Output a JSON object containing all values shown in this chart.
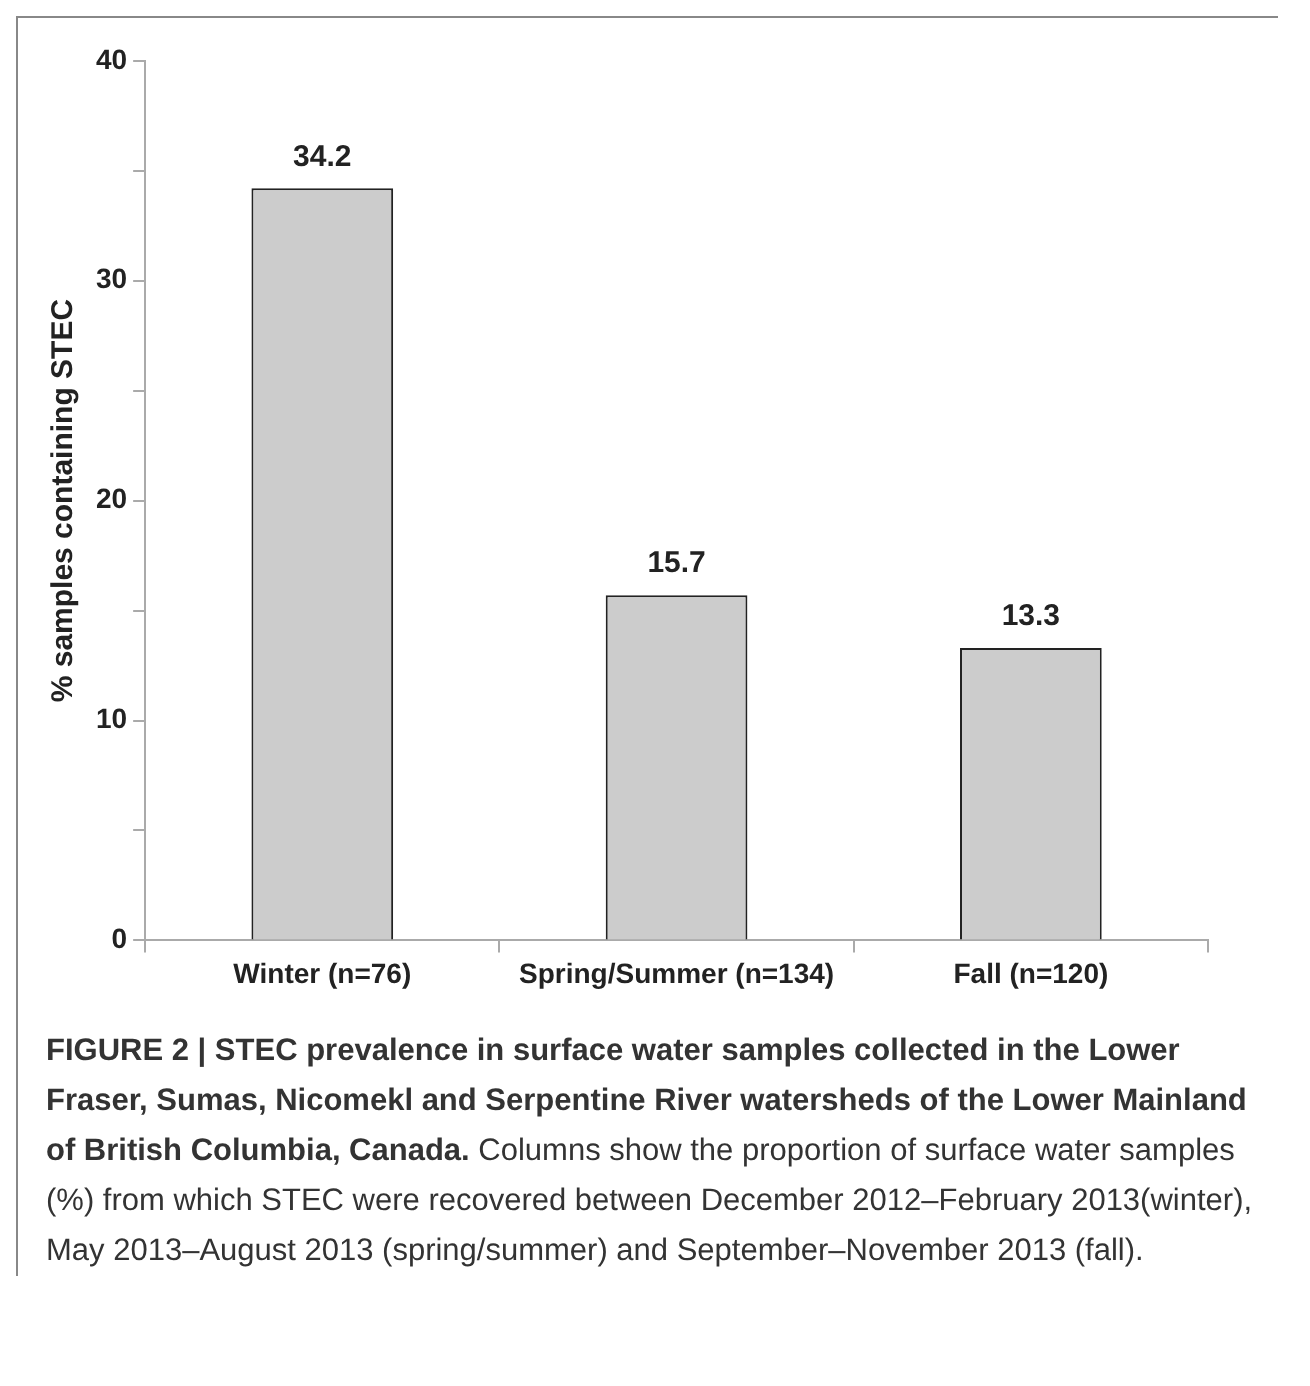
{
  "chart_data": {
    "type": "bar",
    "title": "FIGURE 2 | STEC prevalence in surface water samples collected in the Lower Fraser, Sumas, Nicomekl and Serpentine River watersheds of the Lower Mainland of British Columbia, Canada.",
    "annotations": [
      "Columns show the proportion of surface water samples (%) from which STEC were recovered between December 2012–February 2013(winter), May 2013–August 2013 (spring/summer) and September–November 2013 (fall)."
    ],
    "ylabel": "% samples containing STEC",
    "categories": [
      "Winter (n=76)",
      "Spring/Summer (n=134)",
      "Fall (n=120)"
    ],
    "values": [
      34.2,
      15.7,
      13.3
    ],
    "color": "#cccccc",
    "ylim": [
      0,
      40
    ],
    "yticks": [
      0,
      {
        "value": 5,
        "label": null
      },
      10,
      {
        "value": 15,
        "label": null
      },
      20,
      {
        "value": 25,
        "label": null
      },
      30,
      {
        "value": 35,
        "label": null
      },
      40
    ],
    "data_labels": true,
    "grid": false,
    "legend": false
  }
}
